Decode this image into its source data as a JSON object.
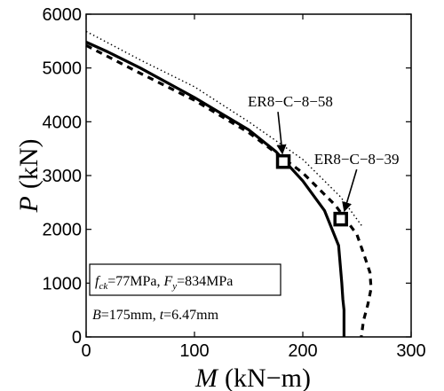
{
  "chart_data": {
    "type": "line",
    "xlabel_var": "M",
    "xlabel_unit": "(kN−m)",
    "ylabel_var": "P",
    "ylabel_unit": "(kN)",
    "xlim": [
      0,
      300
    ],
    "ylim": [
      0,
      6000
    ],
    "xticks": [
      0,
      100,
      200,
      300
    ],
    "yticks": [
      0,
      1000,
      2000,
      3000,
      4000,
      5000,
      6000
    ],
    "grid": false,
    "series": [
      {
        "style": "solid",
        "points": [
          [
            0,
            5480
          ],
          [
            20,
            5300
          ],
          [
            50,
            5000
          ],
          [
            100,
            4450
          ],
          [
            150,
            3850
          ],
          [
            175,
            3450
          ],
          [
            200,
            2900
          ],
          [
            220,
            2350
          ],
          [
            233,
            1700
          ],
          [
            236,
            1000
          ],
          [
            237,
            700
          ],
          [
            238,
            500
          ],
          [
            238,
            0
          ]
        ]
      },
      {
        "style": "dashed",
        "points": [
          [
            0,
            5420
          ],
          [
            50,
            4900
          ],
          [
            100,
            4400
          ],
          [
            150,
            3800
          ],
          [
            200,
            3050
          ],
          [
            230,
            2450
          ],
          [
            250,
            1900
          ],
          [
            257,
            1500
          ],
          [
            262,
            1200
          ],
          [
            263,
            900
          ],
          [
            260,
            600
          ],
          [
            256,
            300
          ],
          [
            254,
            0
          ]
        ]
      },
      {
        "style": "dotted",
        "points": [
          [
            0,
            5680
          ],
          [
            50,
            5150
          ],
          [
            100,
            4650
          ],
          [
            150,
            4000
          ],
          [
            200,
            3300
          ],
          [
            235,
            2600
          ],
          [
            255,
            2050
          ]
        ]
      }
    ],
    "markers": [
      {
        "label": "ER8−C−8−58",
        "x": 182,
        "y": 3260
      },
      {
        "label": "ER8−C−8−39",
        "x": 235,
        "y": 2190
      }
    ],
    "legend_box": {
      "f_sym": "f",
      "f_sub": "ck",
      "f_val": "=77MPa, ",
      "F_sym": "F",
      "F_sub": "y",
      "F_val": "=834MPa"
    },
    "note": {
      "B_sym": "B",
      "B_val": "=175mm, ",
      "t_sym": "t",
      "t_val": "=6.47mm"
    }
  }
}
